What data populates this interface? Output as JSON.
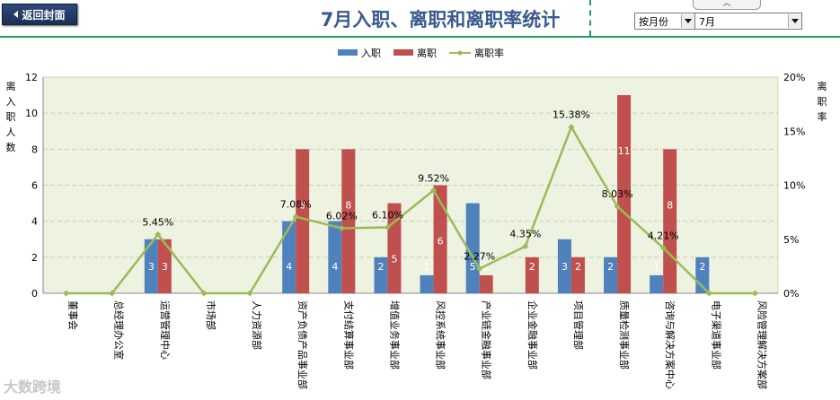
{
  "header": {
    "back_label": "返回封面",
    "title": "7月入职、离职和离职率统计",
    "filter_mode": "按月份",
    "month": "7月"
  },
  "watermark": "大数跨境",
  "colors": {
    "hire": "#4f81bd",
    "leave": "#c0504d",
    "rate": "#9bbb59",
    "plot_bg": "#eef2e1",
    "title": "#3a5a8c"
  },
  "chart_data": {
    "type": "bar",
    "categories": [
      "董事会",
      "总经理办公室",
      "运营管理中心",
      "市场部",
      "人力资源部",
      "资产负债产品事业部",
      "支付结算事业部",
      "增值业务事业部",
      "风控系统事业部",
      "产业链金融事业部",
      "企业金融事业部",
      "项目管理部",
      "质量检测事业部",
      "咨询与解决方案中心",
      "电子渠道事业部",
      "风险管理解决方案部"
    ],
    "series": [
      {
        "name": "入职",
        "type": "bar",
        "values": [
          0,
          0,
          3,
          0,
          0,
          4,
          4,
          2,
          1,
          5,
          0,
          3,
          2,
          1,
          2,
          0
        ]
      },
      {
        "name": "离职",
        "type": "bar",
        "values": [
          0,
          0,
          3,
          0,
          0,
          8,
          8,
          5,
          6,
          1,
          2,
          2,
          11,
          8,
          0,
          0
        ]
      },
      {
        "name": "离职率",
        "type": "line",
        "axis": "right",
        "values": [
          0,
          0,
          5.45,
          0,
          0,
          7.08,
          6.02,
          6.1,
          9.52,
          2.27,
          4.35,
          15.38,
          8.03,
          4.21,
          0,
          0
        ]
      }
    ],
    "rate_labels": [
      "",
      "",
      "5.45%",
      "",
      "",
      "7.08%",
      "6.02%",
      "6.10%",
      "9.52%",
      "2.27%",
      "4.35%",
      "15.38%",
      "8.03%",
      "4.21%",
      "",
      ""
    ],
    "ylabel": "离入职人数",
    "y2label": "离职率",
    "ylim": [
      0,
      12
    ],
    "yticks": [
      "0",
      "2",
      "4",
      "6",
      "8",
      "10",
      "12"
    ],
    "y2lim": [
      0,
      20
    ],
    "y2ticks": [
      "0%",
      "5%",
      "10%",
      "15%",
      "20%"
    ],
    "grid": true,
    "legend": "top-center"
  }
}
